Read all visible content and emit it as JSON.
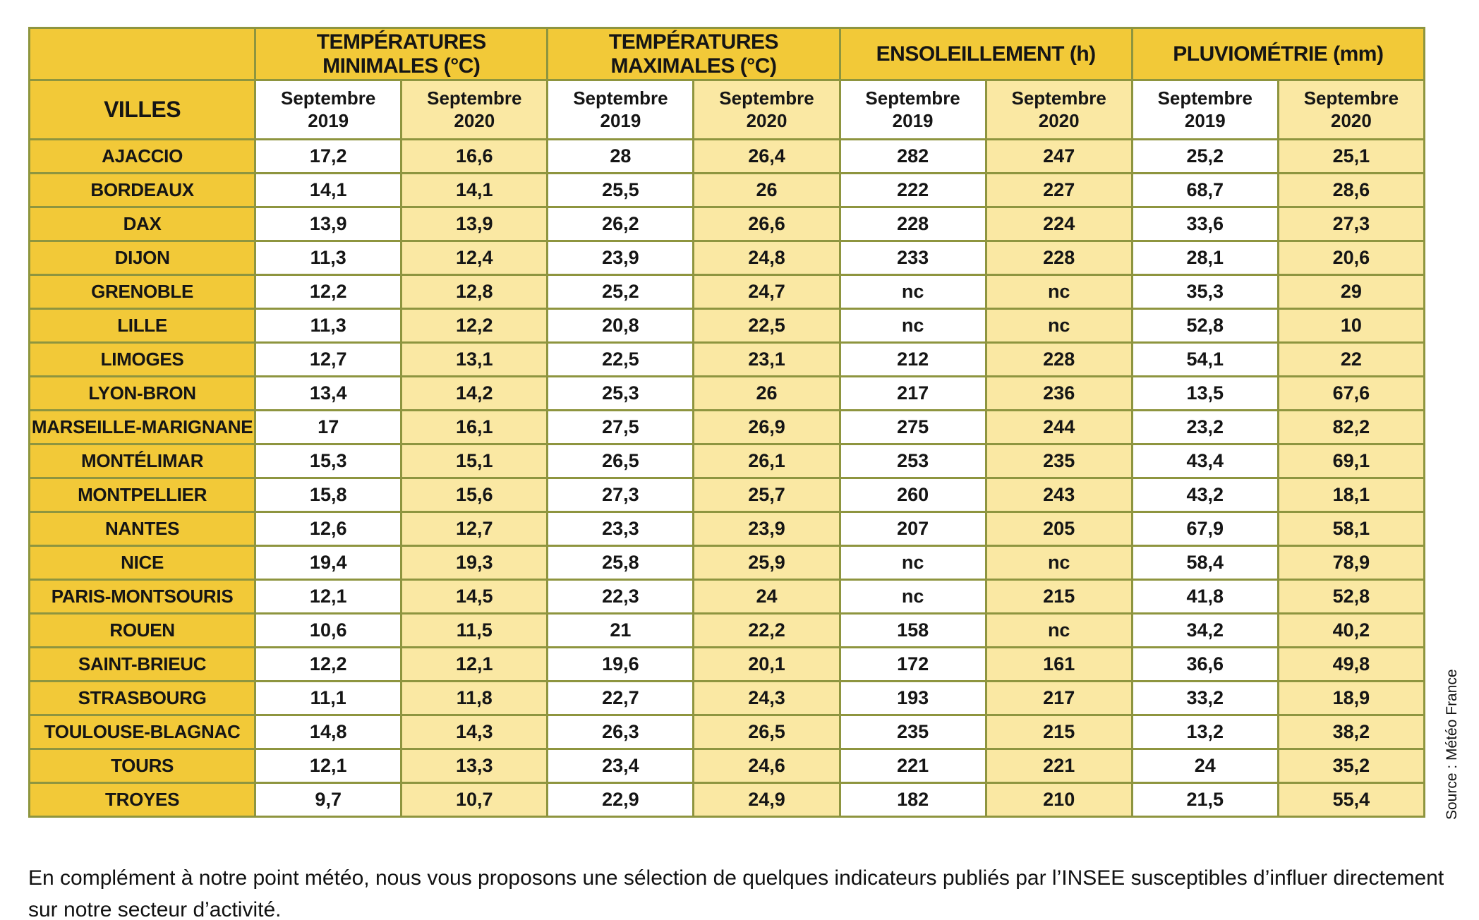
{
  "table": {
    "row_header": "VILLES",
    "month": "Septembre",
    "years": [
      "2019",
      "2020"
    ],
    "groups": [
      {
        "label": "TEMPÉRATURES MINIMALES (°C)"
      },
      {
        "label": "TEMPÉRATURES MAXIMALES (°C)"
      },
      {
        "label": "ENSOLEILLEMENT (h)"
      },
      {
        "label": "PLUVIOMÉTRIE (mm)"
      }
    ],
    "rows": [
      {
        "city": "AJACCIO",
        "values": [
          "17,2",
          "16,6",
          "28",
          "26,4",
          "282",
          "247",
          "25,2",
          "25,1"
        ]
      },
      {
        "city": "BORDEAUX",
        "values": [
          "14,1",
          "14,1",
          "25,5",
          "26",
          "222",
          "227",
          "68,7",
          "28,6"
        ]
      },
      {
        "city": "DAX",
        "values": [
          "13,9",
          "13,9",
          "26,2",
          "26,6",
          "228",
          "224",
          "33,6",
          "27,3"
        ]
      },
      {
        "city": "DIJON",
        "values": [
          "11,3",
          "12,4",
          "23,9",
          "24,8",
          "233",
          "228",
          "28,1",
          "20,6"
        ]
      },
      {
        "city": "GRENOBLE",
        "values": [
          "12,2",
          "12,8",
          "25,2",
          "24,7",
          "nc",
          "nc",
          "35,3",
          "29"
        ]
      },
      {
        "city": "LILLE",
        "values": [
          "11,3",
          "12,2",
          "20,8",
          "22,5",
          "nc",
          "nc",
          "52,8",
          "10"
        ]
      },
      {
        "city": "LIMOGES",
        "values": [
          "12,7",
          "13,1",
          "22,5",
          "23,1",
          "212",
          "228",
          "54,1",
          "22"
        ]
      },
      {
        "city": "LYON-BRON",
        "values": [
          "13,4",
          "14,2",
          "25,3",
          "26",
          "217",
          "236",
          "13,5",
          "67,6"
        ]
      },
      {
        "city": "MARSEILLE-MARIGNANE",
        "values": [
          "17",
          "16,1",
          "27,5",
          "26,9",
          "275",
          "244",
          "23,2",
          "82,2"
        ]
      },
      {
        "city": "MONTÉLIMAR",
        "values": [
          "15,3",
          "15,1",
          "26,5",
          "26,1",
          "253",
          "235",
          "43,4",
          "69,1"
        ]
      },
      {
        "city": "MONTPELLIER",
        "values": [
          "15,8",
          "15,6",
          "27,3",
          "25,7",
          "260",
          "243",
          "43,2",
          "18,1"
        ]
      },
      {
        "city": "NANTES",
        "values": [
          "12,6",
          "12,7",
          "23,3",
          "23,9",
          "207",
          "205",
          "67,9",
          "58,1"
        ]
      },
      {
        "city": "NICE",
        "values": [
          "19,4",
          "19,3",
          "25,8",
          "25,9",
          "nc",
          "nc",
          "58,4",
          "78,9"
        ]
      },
      {
        "city": "PARIS-MONTSOURIS",
        "values": [
          "12,1",
          "14,5",
          "22,3",
          "24",
          "nc",
          "215",
          "41,8",
          "52,8"
        ]
      },
      {
        "city": "ROUEN",
        "values": [
          "10,6",
          "11,5",
          "21",
          "22,2",
          "158",
          "nc",
          "34,2",
          "40,2"
        ]
      },
      {
        "city": "SAINT-BRIEUC",
        "values": [
          "12,2",
          "12,1",
          "19,6",
          "20,1",
          "172",
          "161",
          "36,6",
          "49,8"
        ]
      },
      {
        "city": "STRASBOURG",
        "values": [
          "11,1",
          "11,8",
          "22,7",
          "24,3",
          "193",
          "217",
          "33,2",
          "18,9"
        ]
      },
      {
        "city": "TOULOUSE-BLAGNAC",
        "values": [
          "14,8",
          "14,3",
          "26,3",
          "26,5",
          "235",
          "215",
          "13,2",
          "38,2"
        ]
      },
      {
        "city": "TOURS",
        "values": [
          "12,1",
          "13,3",
          "23,4",
          "24,6",
          "221",
          "221",
          "24",
          "35,2"
        ]
      },
      {
        "city": "TROYES",
        "values": [
          "9,7",
          "10,7",
          "22,9",
          "24,9",
          "182",
          "210",
          "21,5",
          "55,4"
        ]
      }
    ]
  },
  "source": "Source : Météo France",
  "footer": "En complément à notre point météo, nous vous proposons une sélection de quelques indicateurs publiés par l’INSEE susceptibles d’influer directement sur notre secteur d’activité."
}
